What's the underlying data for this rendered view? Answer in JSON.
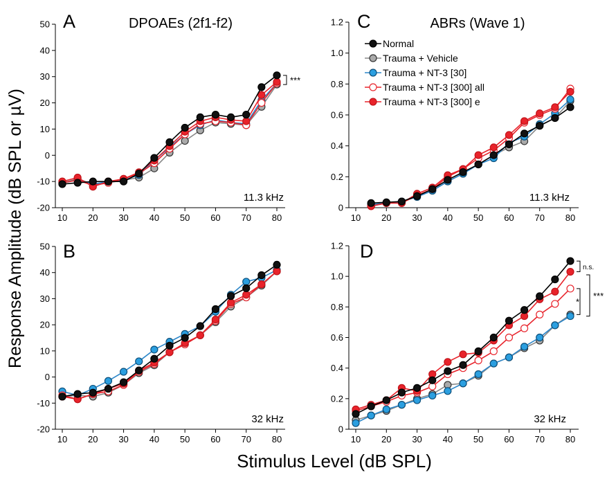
{
  "figure": {
    "ylabel": "Response Amplitude (dB SPL or µV)",
    "xlabel": "Stimulus Level (dB SPL)"
  },
  "series_styles": [
    {
      "key": "normal",
      "fill": "#111111",
      "stroke": "#000000",
      "line": "#000000"
    },
    {
      "key": "vehicle",
      "fill": "#aaaaaa",
      "stroke": "#333333",
      "line": "#888888"
    },
    {
      "key": "nt3_30",
      "fill": "#2b9fe0",
      "stroke": "#0d4f7a",
      "line": "#2b86c9"
    },
    {
      "key": "nt3_300_all",
      "fill": "#ffffff",
      "stroke": "#e8232b",
      "line": "#e8232b"
    },
    {
      "key": "nt3_300_e",
      "fill": "#e8232b",
      "stroke": "#c0141a",
      "line": "#e8232b"
    }
  ],
  "legend": {
    "entries": [
      "Normal",
      "Trauma + Vehicle",
      "Trauma + NT-3 [30]",
      "Trauma + NT-3 [300] all",
      "Trauma + NT-3 [300] e"
    ]
  },
  "chart_data": [
    {
      "panel": "A",
      "type": "line",
      "title": "DPOAEs (2f1-f2)",
      "freq_label": "11.3 kHz",
      "xlim": [
        10,
        80
      ],
      "ylim": [
        -20,
        50
      ],
      "xticks": [
        10,
        20,
        30,
        40,
        50,
        60,
        70,
        80
      ],
      "yticks": [
        -20,
        -10,
        0,
        10,
        20,
        30,
        40,
        50
      ],
      "ytick_labels": [
        "-20",
        "-10",
        "0",
        "10",
        "20",
        "30",
        "40",
        "50"
      ],
      "x": [
        10,
        15,
        20,
        25,
        30,
        35,
        40,
        45,
        50,
        55,
        60,
        65,
        70,
        75,
        80
      ],
      "series": [
        {
          "values": [
            -11,
            -10.5,
            -10,
            -10,
            -10,
            -7,
            -1,
            5,
            10.5,
            14.5,
            15.5,
            14.5,
            15.5,
            26,
            30.5
          ]
        },
        {
          "values": [
            -10.5,
            -9,
            -11,
            -10.5,
            -9.5,
            -8.5,
            -5,
            1,
            5.5,
            9.5,
            12.5,
            12,
            11.5,
            18.5,
            27
          ]
        },
        {
          "values": [
            -10.5,
            -9.5,
            -11,
            -10,
            -9.5,
            -7.5,
            -2,
            3,
            8,
            11.5,
            13.5,
            12.5,
            12,
            21,
            27.5
          ]
        },
        {
          "values": [
            -10.5,
            -9.5,
            -11.5,
            -10.5,
            -9,
            -7,
            -3,
            2.5,
            8,
            12,
            13,
            12.5,
            11.5,
            20,
            27.5
          ]
        },
        {
          "values": [
            -10,
            -8.5,
            -12,
            -10,
            -9,
            -6.5,
            -2,
            3.5,
            9,
            13,
            14.5,
            13.5,
            13,
            23,
            28
          ]
        }
      ],
      "annotations": [
        {
          "text": "***"
        }
      ]
    },
    {
      "panel": "B",
      "type": "line",
      "title": "",
      "freq_label": "32 kHz",
      "xlim": [
        10,
        80
      ],
      "ylim": [
        -20,
        50
      ],
      "xticks": [
        10,
        20,
        30,
        40,
        50,
        60,
        70,
        80
      ],
      "yticks": [
        -20,
        -10,
        0,
        10,
        20,
        30,
        40,
        50
      ],
      "ytick_labels": [
        "-20",
        "-10",
        "0",
        "10",
        "20",
        "30",
        "40",
        "50"
      ],
      "x": [
        10,
        15,
        20,
        25,
        30,
        35,
        40,
        45,
        50,
        55,
        60,
        65,
        70,
        75,
        80
      ],
      "series": [
        {
          "values": [
            -7.5,
            -6.5,
            -6,
            -4.5,
            -2,
            2.5,
            7,
            12,
            15,
            19.5,
            26,
            31,
            34,
            39,
            43
          ]
        },
        {
          "values": [
            -7.5,
            -7,
            -7.5,
            -6,
            -3,
            1.5,
            4.5,
            9.5,
            12.5,
            16,
            21,
            27,
            30.5,
            35,
            40.5
          ]
        },
        {
          "values": [
            -5.5,
            -7,
            -4.5,
            -1.5,
            2,
            6,
            10.5,
            13.5,
            16.5,
            19.5,
            25,
            31.5,
            36.5,
            38,
            41
          ]
        },
        {
          "values": [
            -7,
            -8.5,
            -6.5,
            -5.5,
            -3,
            2,
            5,
            9.5,
            12.5,
            16,
            21.5,
            28,
            30.5,
            35.5,
            40.5
          ]
        },
        {
          "values": [
            -7.5,
            -8.5,
            -6.5,
            -4.5,
            -2.5,
            2.5,
            5.5,
            9.5,
            13,
            16,
            22,
            28.5,
            31.5,
            35.5,
            40.5
          ]
        }
      ],
      "annotations": []
    },
    {
      "panel": "C",
      "type": "line",
      "title": "ABRs (Wave 1)",
      "freq_label": "11.3 kHz",
      "xlim": [
        10,
        80
      ],
      "ylim": [
        0,
        1.2
      ],
      "xticks": [
        10,
        20,
        30,
        40,
        50,
        60,
        70,
        80
      ],
      "yticks": [
        0,
        0.2,
        0.4,
        0.6,
        0.8,
        1.0,
        1.2
      ],
      "ytick_labels": [
        "0",
        "0.2",
        "0.4",
        "0.6",
        "0.8",
        "1.0",
        "1.2"
      ],
      "x": [
        15,
        20,
        25,
        30,
        35,
        40,
        45,
        50,
        55,
        60,
        65,
        70,
        75,
        80
      ],
      "series": [
        {
          "values": [
            0.03,
            0.035,
            0.04,
            0.075,
            0.12,
            0.18,
            0.23,
            0.28,
            0.34,
            0.41,
            0.48,
            0.53,
            0.58,
            0.65
          ]
        },
        {
          "values": [
            0.02,
            0.03,
            0.04,
            0.07,
            0.11,
            0.17,
            0.22,
            0.28,
            0.34,
            0.39,
            0.43,
            0.53,
            0.58,
            0.69
          ]
        },
        {
          "values": [
            0.02,
            0.03,
            0.04,
            0.07,
            0.11,
            0.17,
            0.22,
            0.28,
            0.32,
            0.42,
            0.46,
            0.54,
            0.61,
            0.7
          ]
        },
        {
          "values": [
            0.01,
            0.03,
            0.03,
            0.08,
            0.12,
            0.2,
            0.25,
            0.32,
            0.37,
            0.45,
            0.55,
            0.6,
            0.64,
            0.77
          ]
        },
        {
          "values": [
            0.01,
            0.03,
            0.03,
            0.09,
            0.13,
            0.21,
            0.25,
            0.34,
            0.39,
            0.47,
            0.56,
            0.61,
            0.65,
            0.75
          ]
        }
      ],
      "annotations": []
    },
    {
      "panel": "D",
      "type": "line",
      "title": "",
      "freq_label": "32 kHz",
      "xlim": [
        10,
        80
      ],
      "ylim": [
        0,
        1.2
      ],
      "xticks": [
        10,
        20,
        30,
        40,
        50,
        60,
        70,
        80
      ],
      "yticks": [
        0,
        0.2,
        0.4,
        0.6,
        0.8,
        1.0,
        1.2
      ],
      "ytick_labels": [
        "0",
        "0.2",
        "0.4",
        "0.6",
        "0.8",
        "1.0",
        "1.2"
      ],
      "x": [
        10,
        15,
        20,
        25,
        30,
        35,
        40,
        45,
        50,
        55,
        60,
        65,
        70,
        75,
        80
      ],
      "series": [
        {
          "values": [
            0.1,
            0.15,
            0.19,
            0.24,
            0.27,
            0.32,
            0.38,
            0.42,
            0.51,
            0.6,
            0.71,
            0.78,
            0.87,
            0.98,
            1.1
          ]
        },
        {
          "values": [
            0.06,
            0.09,
            0.12,
            0.16,
            0.2,
            0.23,
            0.29,
            0.3,
            0.35,
            0.43,
            0.47,
            0.53,
            0.58,
            0.68,
            0.75
          ]
        },
        {
          "values": [
            0.04,
            0.09,
            0.13,
            0.16,
            0.19,
            0.22,
            0.25,
            0.3,
            0.36,
            0.43,
            0.47,
            0.54,
            0.6,
            0.68,
            0.74
          ]
        },
        {
          "values": [
            0.12,
            0.15,
            0.18,
            0.22,
            0.24,
            0.28,
            0.36,
            0.4,
            0.45,
            0.51,
            0.6,
            0.66,
            0.75,
            0.82,
            0.92
          ]
        },
        {
          "values": [
            0.13,
            0.16,
            0.19,
            0.27,
            0.25,
            0.36,
            0.44,
            0.49,
            0.5,
            0.58,
            0.68,
            0.74,
            0.85,
            0.9,
            1.03
          ]
        }
      ],
      "annotations": [
        {
          "text": "n.s."
        },
        {
          "text": "***"
        },
        {
          "text": "*"
        }
      ]
    }
  ]
}
